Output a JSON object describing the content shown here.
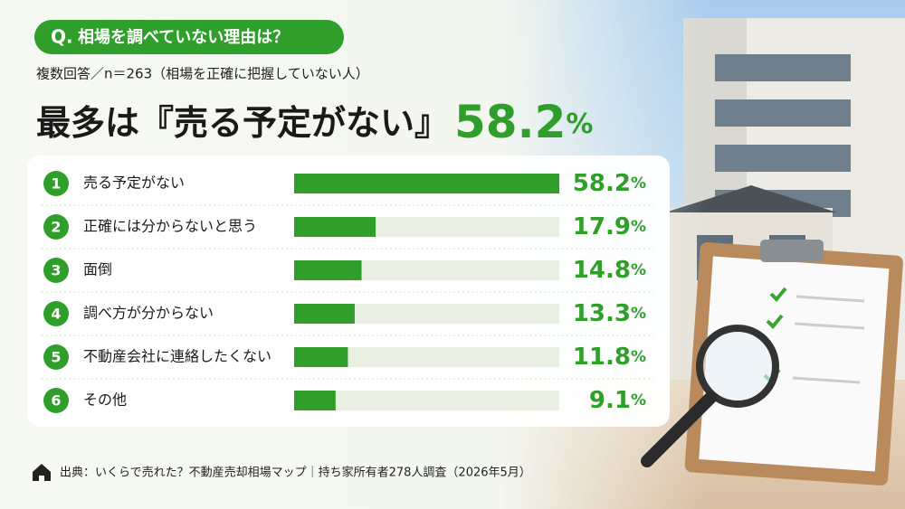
{
  "question_label": "Q.",
  "question": "相場を調べていない理由は？",
  "subtitle": "複数回答／n＝263（相場を正確に把握していない人）",
  "headline": {
    "text": "最多は『売る予定がない』",
    "value": "58.2",
    "unit": "%"
  },
  "chart_data": {
    "type": "bar",
    "orientation": "horizontal",
    "ranks": [
      1,
      2,
      3,
      4,
      5,
      6
    ],
    "categories": [
      "売る予定がない",
      "正確には分からないと思う",
      "面倒",
      "調べ方が分からない",
      "不動産会社に連絡したくない",
      "その他"
    ],
    "values": [
      58.2,
      17.9,
      14.8,
      13.3,
      11.8,
      9.1
    ],
    "unit": "%",
    "color": "#2f9e2a"
  },
  "source": "出典：いくらで売れた？不動産売却相場マップ｜持ち家所有者278人調査（2026年5月）"
}
